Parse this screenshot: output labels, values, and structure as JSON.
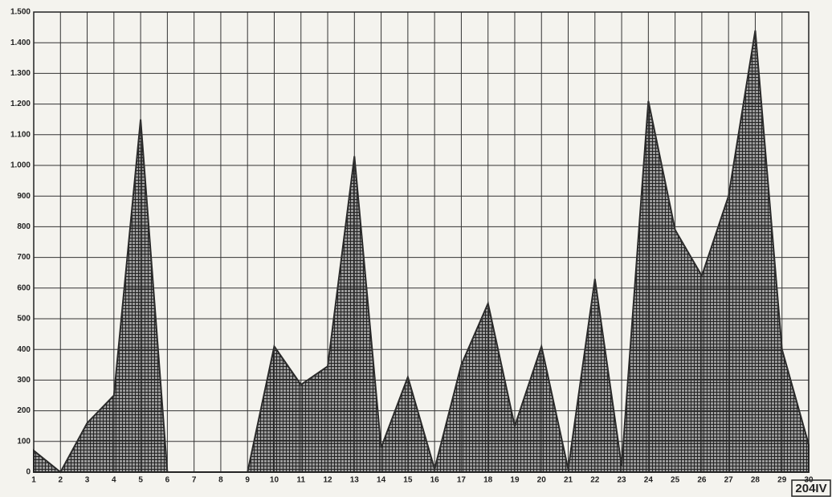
{
  "chart_data": {
    "type": "area",
    "x": [
      1,
      2,
      3,
      4,
      5,
      6,
      7,
      8,
      9,
      10,
      11,
      12,
      13,
      14,
      15,
      16,
      17,
      18,
      19,
      20,
      21,
      22,
      23,
      24,
      25,
      26,
      27,
      28,
      29,
      30
    ],
    "values": [
      70,
      0,
      160,
      250,
      1150,
      0,
      0,
      0,
      0,
      410,
      285,
      345,
      1030,
      80,
      310,
      10,
      350,
      550,
      150,
      410,
      10,
      630,
      20,
      1210,
      790,
      640,
      900,
      1440,
      400,
      90
    ],
    "color": "#2a2a2a",
    "xlim": [
      1,
      30
    ],
    "xticks": [
      1,
      2,
      3,
      4,
      5,
      6,
      7,
      8,
      9,
      10,
      11,
      12,
      13,
      14,
      15,
      16,
      17,
      18,
      19,
      20,
      21,
      22,
      23,
      24,
      25,
      26,
      27,
      28,
      29,
      30
    ],
    "ylim": [
      0,
      1500
    ],
    "yticks": [
      0,
      100,
      200,
      300,
      400,
      500,
      600,
      700,
      800,
      900,
      {
        "value": 1000,
        "label": "1.000"
      },
      {
        "value": 1100,
        "label": "1.100"
      },
      {
        "value": 1200,
        "label": "1.200"
      },
      {
        "value": 1300,
        "label": "1.300"
      },
      {
        "value": 1400,
        "label": "1.400"
      },
      {
        "value": 1500,
        "label": "1.500"
      }
    ],
    "grid": true,
    "annotation": "204IV"
  }
}
